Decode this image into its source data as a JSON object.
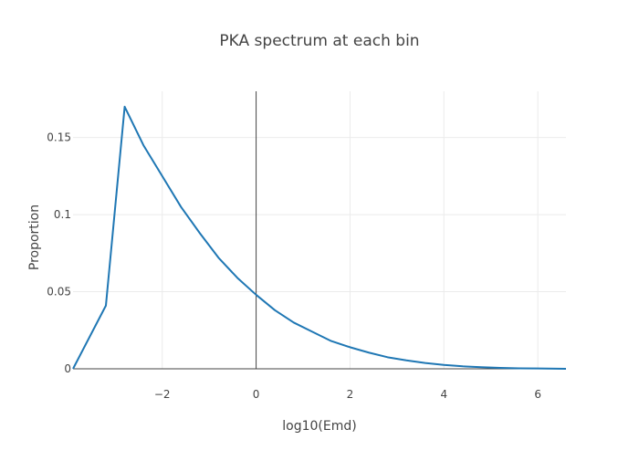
{
  "chart_data": {
    "type": "line",
    "title": "PKA spectrum at each bin",
    "xlabel": "log10(Emd)",
    "ylabel": "Proportion",
    "xlim": [
      -3.9,
      6.6
    ],
    "ylim": [
      0,
      0.18
    ],
    "grid": true,
    "legend": "none",
    "x_ticks": [
      -2,
      0,
      2,
      4,
      6
    ],
    "x_tick_labels": [
      "−2",
      "0",
      "2",
      "4",
      "6"
    ],
    "y_ticks": [
      0,
      0.05,
      0.1,
      0.15
    ],
    "y_tick_labels": [
      "0",
      "0.05",
      "0.1",
      "0.15"
    ],
    "series": [
      {
        "color": "#1f77b4",
        "x": [
          -3.9,
          -3.2,
          -2.8,
          -2.4,
          -2.0,
          -1.6,
          -1.2,
          -0.8,
          -0.4,
          0.0,
          0.4,
          0.8,
          1.2,
          1.6,
          2.0,
          2.4,
          2.8,
          3.2,
          3.6,
          4.0,
          4.4,
          4.8,
          5.2,
          5.6,
          6.0,
          6.4,
          6.6
        ],
        "y": [
          0.0,
          0.041,
          0.17,
          0.145,
          0.125,
          0.105,
          0.088,
          0.072,
          0.059,
          0.048,
          0.038,
          0.03,
          0.024,
          0.018,
          0.014,
          0.0105,
          0.0075,
          0.0055,
          0.0038,
          0.0025,
          0.0016,
          0.001,
          0.0006,
          0.0003,
          0.0002,
          0.0001,
          0.0
        ]
      }
    ]
  }
}
